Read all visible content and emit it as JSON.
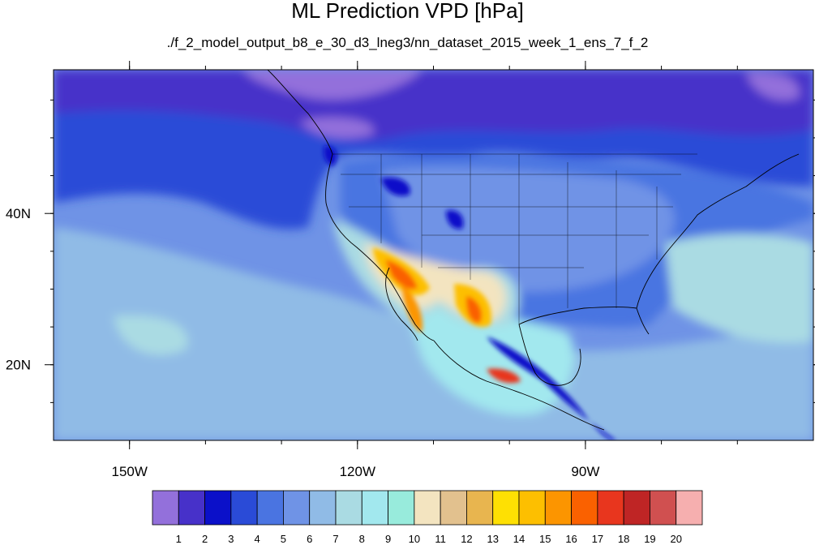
{
  "figure": {
    "title": "ML Prediction VPD [hPa]",
    "subtitle": "./f_2_model_output_b8_e_30_d3_lneg3/nn_dataset_2015_week_1_ens_7_f_2"
  },
  "map": {
    "lon_range": [
      -160,
      -60
    ],
    "lat_range": [
      10,
      59
    ],
    "lon_ticks": [
      {
        "value": -150,
        "label": "150W"
      },
      {
        "value": -120,
        "label": "120W"
      },
      {
        "value": -90,
        "label": "90W"
      }
    ],
    "lat_ticks": [
      {
        "value": 40,
        "label": "40N"
      },
      {
        "value": 20,
        "label": "20N"
      }
    ],
    "variable": "VPD",
    "units": "hPa"
  },
  "colorbar": {
    "labels": [
      "1",
      "2",
      "3",
      "4",
      "5",
      "6",
      "7",
      "8",
      "9",
      "10",
      "11",
      "12",
      "13",
      "14",
      "15",
      "16",
      "17",
      "18",
      "19",
      "20"
    ],
    "colors": [
      "#9370db",
      "#4731c9",
      "#0b10c9",
      "#2a4bd7",
      "#4a74e1",
      "#6f93e6",
      "#90bbe6",
      "#aadbe3",
      "#a2e8ee",
      "#98ebdc",
      "#f3e4c0",
      "#e2c18e",
      "#e8b54f",
      "#fee003",
      "#fdbf00",
      "#fc9500",
      "#fa6100",
      "#e8361e",
      "#bf2525",
      "#d05050",
      "#f6afaf"
    ]
  },
  "colors": {
    "ocean_base": "#6f93e6",
    "land_base": "#4a74e1",
    "coast": "#000000"
  }
}
